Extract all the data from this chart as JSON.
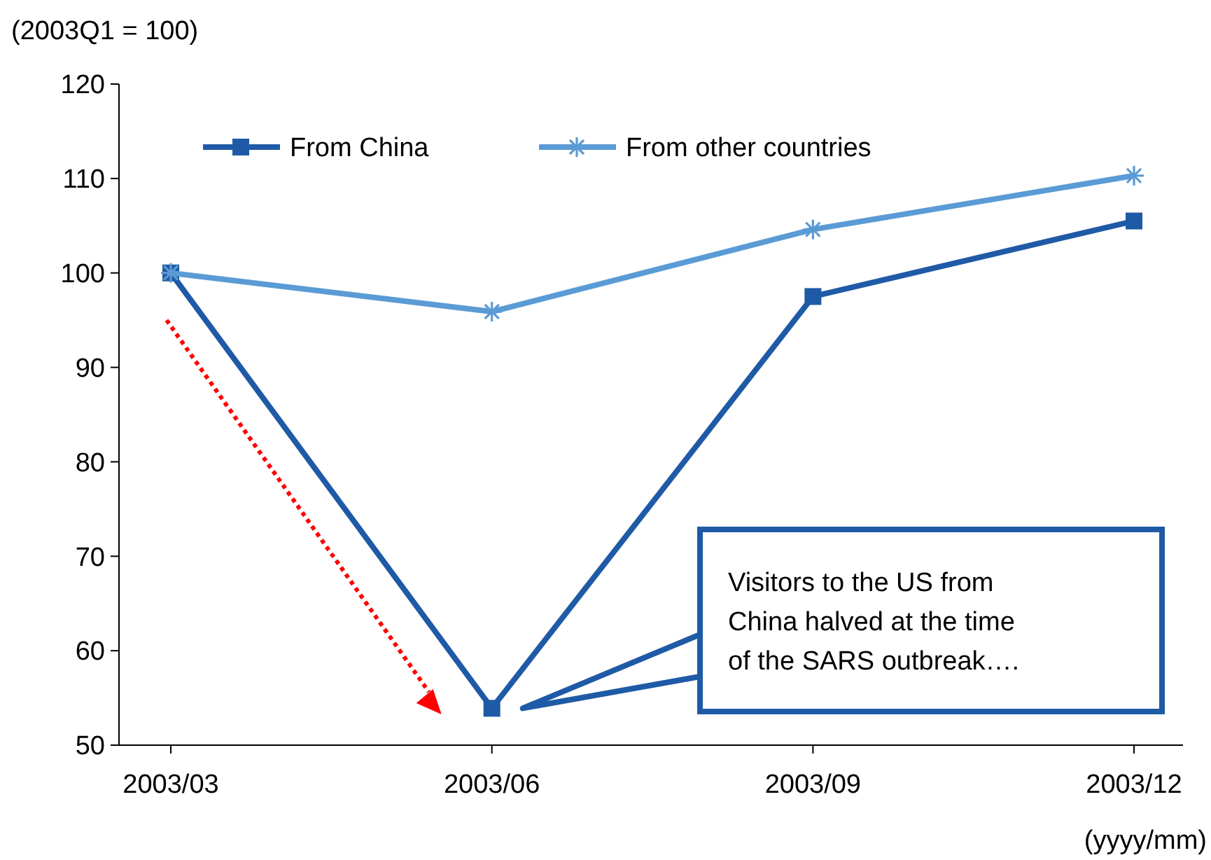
{
  "chart_data": {
    "type": "line",
    "ylabel": "(2003Q1  = 100)",
    "xlabel": "(yyyy/mm)",
    "categories": [
      "2003/03",
      "2003/06",
      "2003/09",
      "2003/12"
    ],
    "series": [
      {
        "name": "From China",
        "color": "#1f5aa6",
        "marker": "square",
        "values": [
          100,
          53.9,
          97.5,
          105.5
        ]
      },
      {
        "name": "From other countries",
        "color": "#5b9bd5",
        "marker": "cross",
        "values": [
          100,
          95.9,
          104.6,
          110.3
        ]
      }
    ],
    "ylim": [
      50,
      120
    ],
    "yticks": [
      50,
      60,
      70,
      80,
      90,
      100,
      110,
      120
    ],
    "grid": false,
    "legend": "top left",
    "annotations": [
      "Visitors to the US from China halved  at the time of the SARS outbreak…."
    ]
  }
}
